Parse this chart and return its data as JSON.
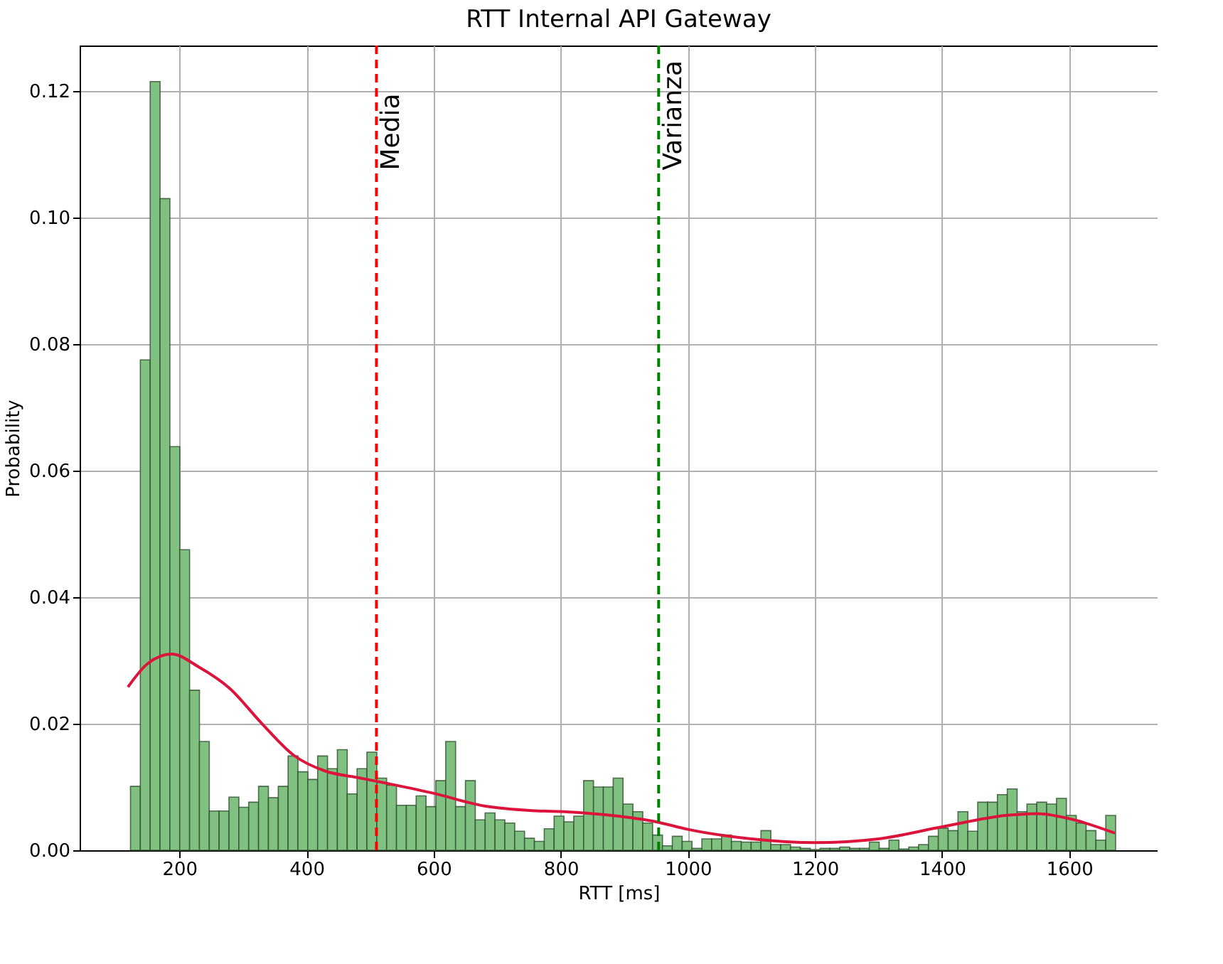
{
  "chart_data": {
    "type": "histogram",
    "title": "RTT Internal API Gateway",
    "xlabel": "RTT [ms]",
    "ylabel": "Probability",
    "bins": [
      123,
      138.5,
      154,
      169.5,
      185,
      200.5,
      216,
      231.5,
      247,
      262.5,
      278,
      293.5,
      309,
      324.5,
      340,
      355.5,
      371,
      386.5,
      402,
      417.5,
      433,
      448.5,
      464,
      479.5,
      495,
      510.5,
      526,
      541.5,
      557,
      572.5,
      588,
      603.5,
      619,
      634.5,
      650,
      665.5,
      681,
      696.5,
      712,
      727.5,
      743,
      758.5,
      774,
      789.5,
      805,
      820.5,
      836,
      851.5,
      867,
      882.5,
      898,
      913.5,
      929,
      944.5,
      960,
      975.5,
      991,
      1006.5,
      1022,
      1037.5,
      1053,
      1068.5,
      1084,
      1099.5,
      1115,
      1130.5,
      1146,
      1161.5,
      1177,
      1192.5,
      1208,
      1223.5,
      1239,
      1254.5,
      1270,
      1285.5,
      1301,
      1316.5,
      1332,
      1347.5,
      1363,
      1378.5,
      1394,
      1409.5,
      1425,
      1440.5,
      1456,
      1471.5,
      1487,
      1502.5,
      1518,
      1533.5,
      1549,
      1564.5,
      1580,
      1595.5,
      1611,
      1626.5,
      1642,
      1657.5,
      1673
    ],
    "series": [
      {
        "type": "histogram",
        "color": "#80c080",
        "values": [
          0.0101,
          0.0775,
          0.1215,
          0.103,
          0.0638,
          0.0475,
          0.0253,
          0.0172,
          0.0062,
          0.0062,
          0.0084,
          0.0068,
          0.0076,
          0.0101,
          0.0083,
          0.0101,
          0.0149,
          0.0124,
          0.0112,
          0.0149,
          0.0129,
          0.0159,
          0.0089,
          0.0129,
          0.0155,
          0.0114,
          0.0103,
          0.0071,
          0.0071,
          0.0086,
          0.0069,
          0.011,
          0.0172,
          0.0069,
          0.011,
          0.0048,
          0.0059,
          0.0048,
          0.0043,
          0.003,
          0.0019,
          0.0014,
          0.0034,
          0.0054,
          0.0045,
          0.0054,
          0.011,
          0.01,
          0.01,
          0.0114,
          0.0073,
          0.0061,
          0.0043,
          0.0024,
          0.0007,
          0.0022,
          0.0014,
          0.0003,
          0.0018,
          0.0018,
          0.0024,
          0.0014,
          0.0013,
          0.0013,
          0.0031,
          0.0009,
          0.0009,
          0.0005,
          0.0003,
          0.0001,
          0.0003,
          0.0003,
          0.0005,
          0.0003,
          0.0003,
          0.0013,
          0.0003,
          0.0016,
          0.0002,
          0.0005,
          0.0009,
          0.0022,
          0.0035,
          0.0031,
          0.0061,
          0.003,
          0.0076,
          0.0076,
          0.0088,
          0.0097,
          0.0061,
          0.0073,
          0.0076,
          0.0073,
          0.0082,
          0.0055,
          0.0043,
          0.0031,
          0.0016,
          0.0055
        ]
      },
      {
        "type": "line",
        "color": "#dc143c",
        "x": [
          119,
          150,
          188,
          230,
          279,
          330,
          380,
          430,
          480,
          530,
          600,
          680,
          750,
          820,
          880,
          950,
          1000,
          1100,
          1200,
          1300,
          1400,
          1500,
          1550,
          1600,
          1672
        ],
        "values": [
          0.0258,
          0.0295,
          0.031,
          0.029,
          0.0256,
          0.02,
          0.015,
          0.0125,
          0.0115,
          0.0105,
          0.009,
          0.007,
          0.0063,
          0.006,
          0.0055,
          0.0045,
          0.0033,
          0.0018,
          0.0012,
          0.0018,
          0.0037,
          0.0055,
          0.0058,
          0.005,
          0.0027
        ]
      }
    ],
    "xlim": [
      43,
      1739
    ],
    "xticks": [
      200,
      400,
      600,
      800,
      1000,
      1200,
      1400,
      1600
    ],
    "ylim": [
      0,
      0.1272
    ],
    "yticks": [
      {
        "value": 0,
        "label": "0.00"
      },
      {
        "value": 0.02,
        "label": "0.02"
      },
      {
        "value": 0.04,
        "label": "0.04"
      },
      {
        "value": 0.06,
        "label": "0.06"
      },
      {
        "value": 0.08,
        "label": "0.08"
      },
      {
        "value": 0.1,
        "label": "0.10"
      },
      {
        "value": 0.12,
        "label": "0.12"
      }
    ],
    "ref_lines": [
      {
        "axis": "x",
        "value": 510,
        "label": "Media",
        "color": "#ff0000",
        "line_style": "dashed"
      },
      {
        "axis": "x",
        "value": 954,
        "label": "Varianza",
        "color": "#008000",
        "line_style": "dashed"
      }
    ],
    "grid": true
  }
}
